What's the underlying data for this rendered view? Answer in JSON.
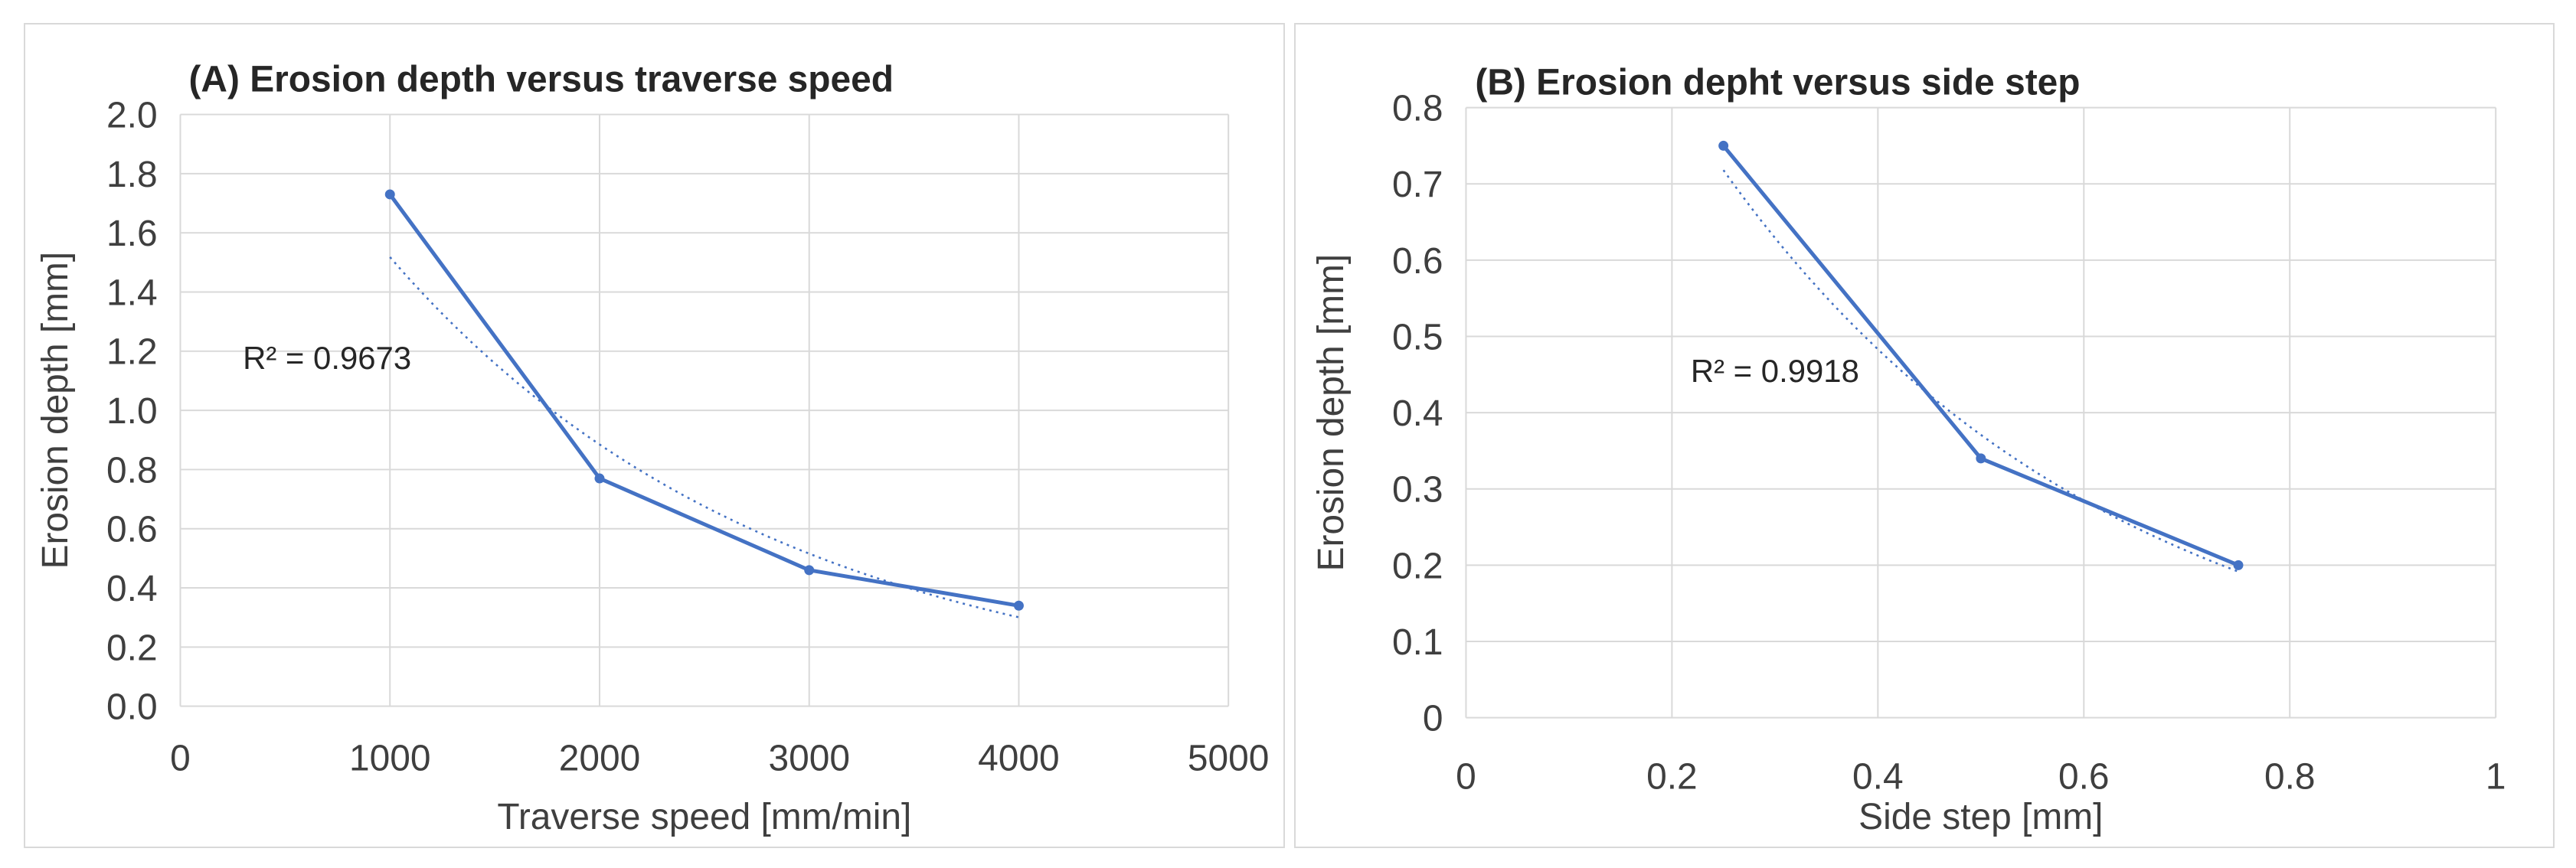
{
  "figure": {
    "description_a": "(A) Erosion depth versus traverse speed",
    "description_b": "(B) Erosion depht versus side step"
  },
  "colors": {
    "series_blue": "#4472C4",
    "gridline": "#d9d9d9",
    "tick_text": "#3f3f3f",
    "title_text": "#262626",
    "annotation_text": "#262626",
    "panel_border": "#d9d9d9",
    "background": "#ffffff"
  },
  "chart_data": [
    {
      "id": "A",
      "type": "line",
      "title": "(A) Erosion depth versus traverse speed",
      "xlabel": "Traverse speed [mm/min]",
      "ylabel": "Erosion depth [mm]",
      "xlim": [
        0,
        5000
      ],
      "ylim": [
        0,
        2.0
      ],
      "x_ticks": [
        "0",
        "1000",
        "2000",
        "3000",
        "4000",
        "5000"
      ],
      "y_ticks": [
        "0.0",
        "0.2",
        "0.4",
        "0.6",
        "0.8",
        "1.0",
        "1.2",
        "1.4",
        "1.6",
        "1.8",
        "2.0"
      ],
      "grid": "both",
      "legend": "none",
      "series": [
        {
          "name": "erosion-depth-vs-traverse-speed",
          "marker": "circle",
          "x": [
            1000,
            2000,
            3000,
            4000
          ],
          "y": [
            1.73,
            0.77,
            0.46,
            0.34
          ]
        }
      ],
      "trendline": {
        "model": "exponential",
        "style": "dotted",
        "a": 2.604,
        "b": -0.0005397,
        "x_range": [
          1000,
          4000
        ]
      },
      "annotation": {
        "text": "R² = 0.9673",
        "x": 700,
        "y": 1.14
      }
    },
    {
      "id": "B",
      "type": "line",
      "title": "(B) Erosion depht versus side step",
      "xlabel": "Side step [mm]",
      "ylabel": "Erosion depth [mm]",
      "xlim": [
        0,
        1
      ],
      "ylim": [
        0,
        0.8
      ],
      "x_ticks": [
        "0",
        "0.2",
        "0.4",
        "0.6",
        "0.8",
        "1"
      ],
      "y_ticks": [
        "0",
        "0.1",
        "0.2",
        "0.3",
        "0.4",
        "0.5",
        "0.6",
        "0.7",
        "0.8"
      ],
      "grid": "both",
      "legend": "none",
      "series": [
        {
          "name": "erosion-depth-vs-side-step",
          "marker": "circle",
          "x": [
            0.25,
            0.5,
            0.75
          ],
          "y": [
            0.75,
            0.34,
            0.2
          ]
        }
      ],
      "trendline": {
        "model": "exponential",
        "style": "dotted",
        "a": 1.39,
        "b": -2.642,
        "x_range": [
          0.25,
          0.75
        ]
      },
      "annotation": {
        "text": "R² = 0.9918",
        "x": 0.3,
        "y": 0.44
      }
    }
  ]
}
